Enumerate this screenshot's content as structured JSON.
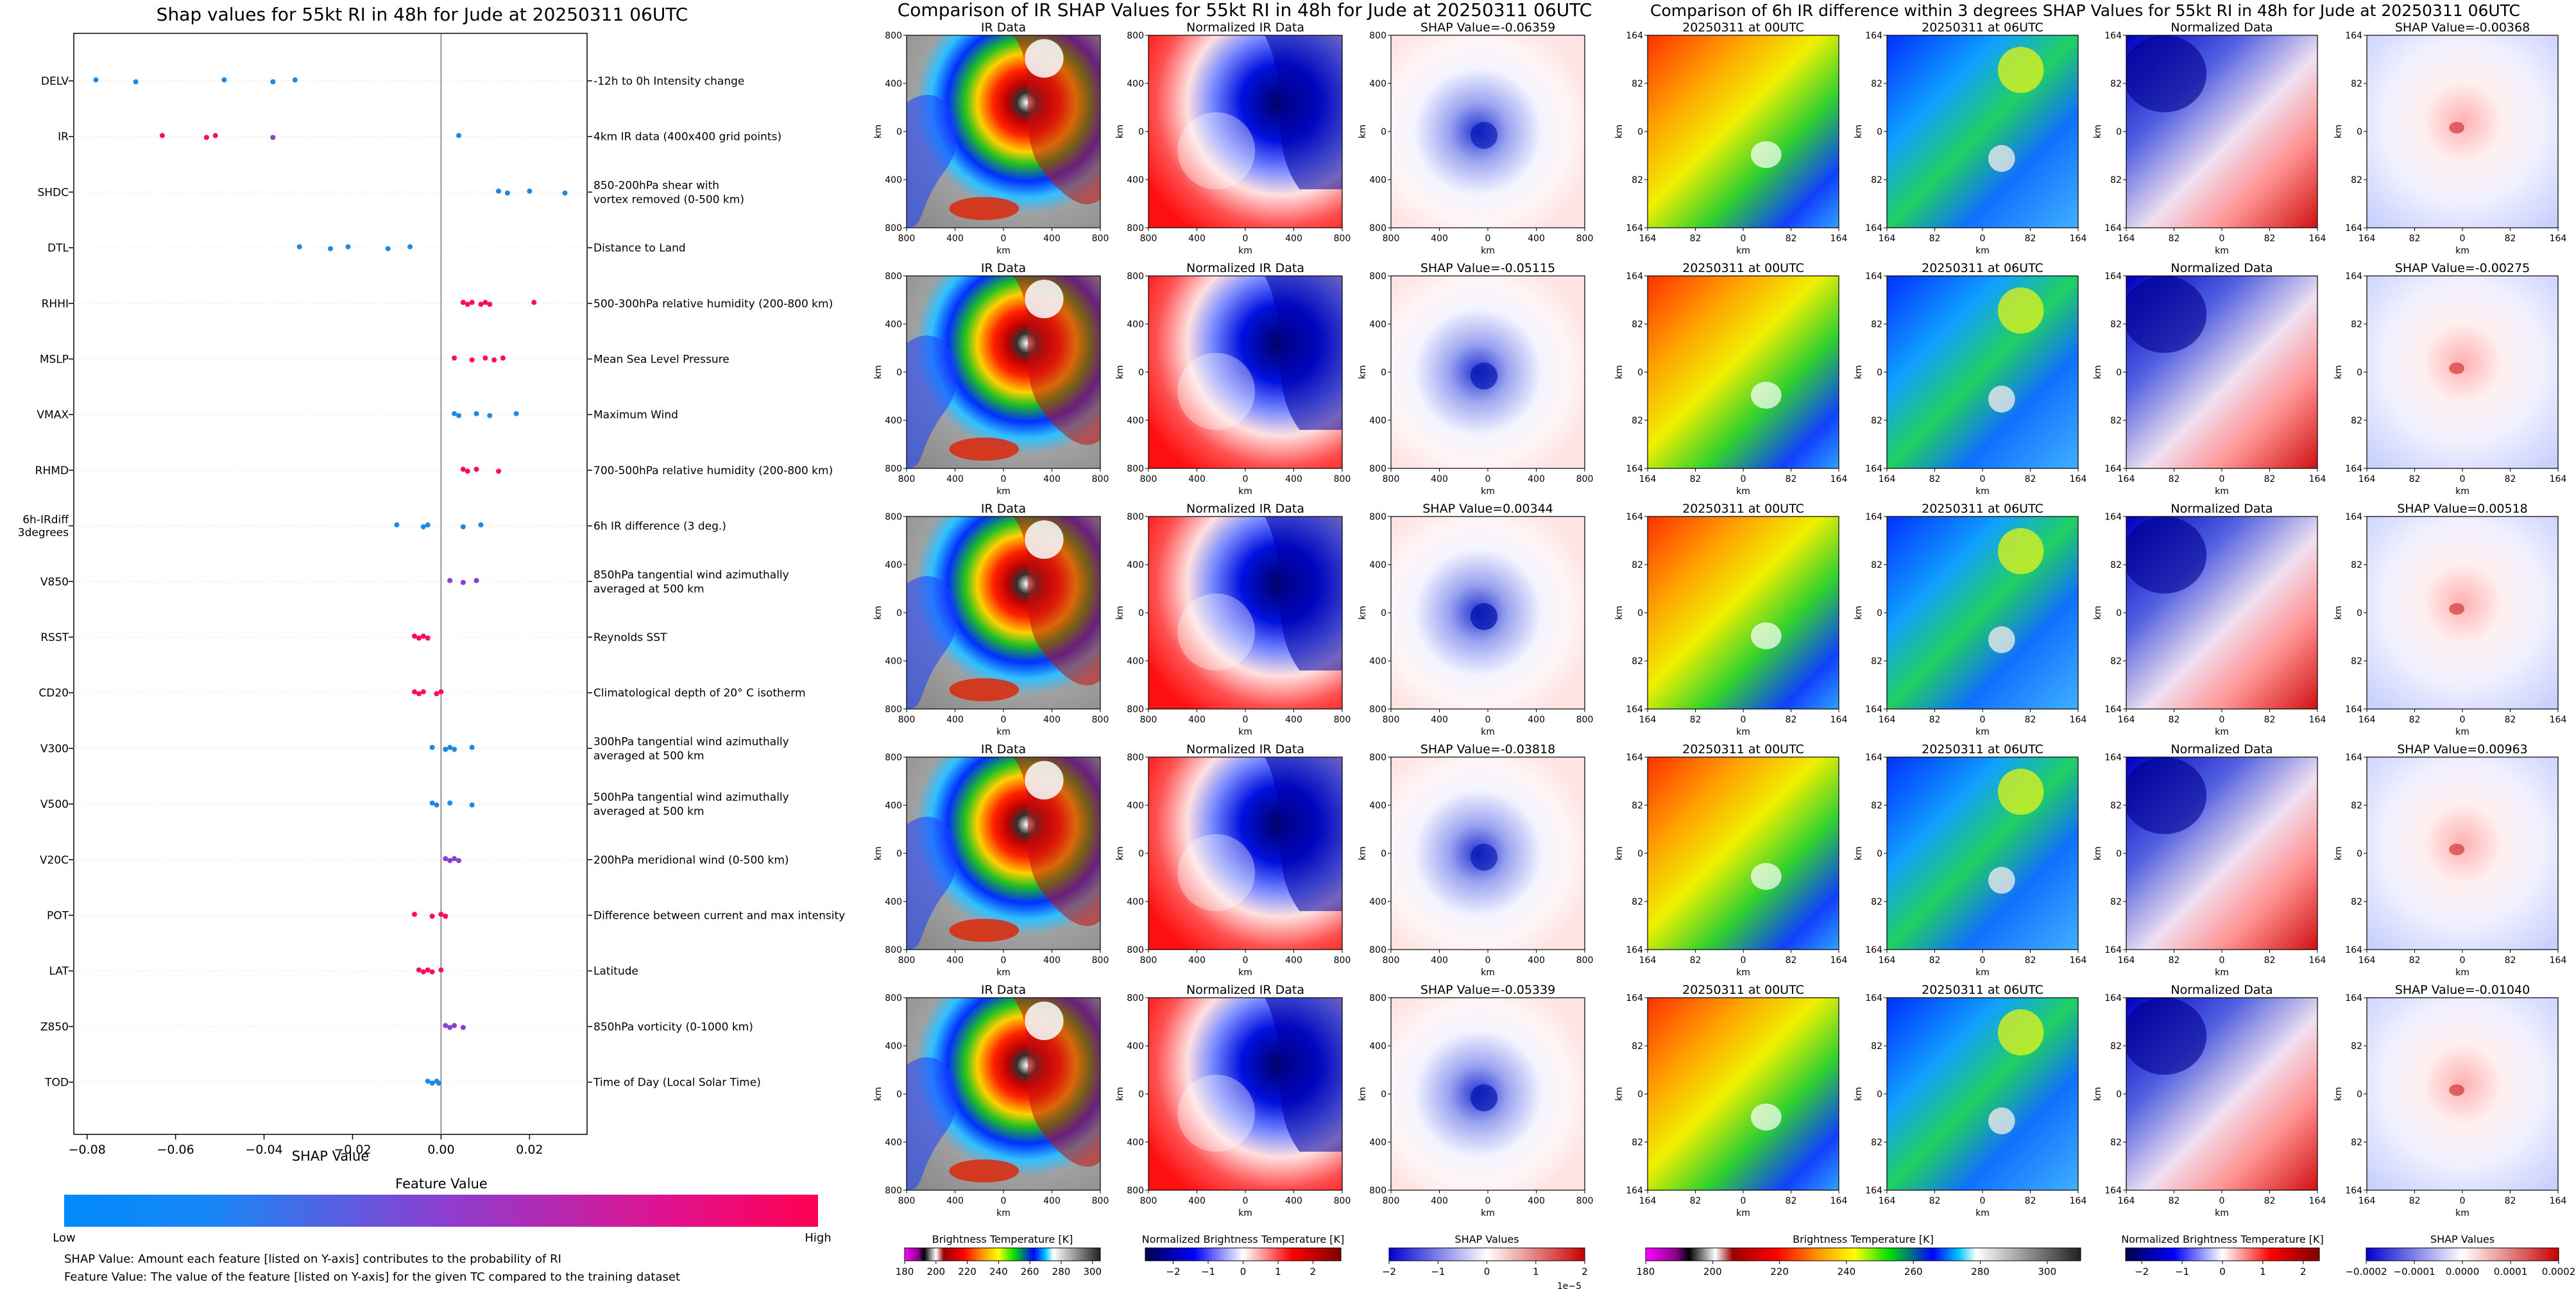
{
  "shap_panel": {
    "title": "Shap values for 55kt RI in 48h for Jude at 20250311 06UTC",
    "xlabel": "SHAP Value",
    "colorbar_title": "Feature Value",
    "colorbar_low": "Low",
    "colorbar_high": "High",
    "note1": "SHAP Value: Amount each feature [listed on Y-axis] contributes to the probability of RI",
    "note2": "Feature Value: The value of the feature [listed on Y-axis] for the given TC compared to the training dataset",
    "colors": {
      "low": "#1e88e5",
      "mid": "#8a3fd1",
      "high": "#ff0d57"
    }
  },
  "ir_panel": {
    "title": "Comparison of IR SHAP Values for 55kt RI in 48h for Jude at 20250311 06UTC",
    "col_titles": [
      "IR Data",
      "Normalized IR Data"
    ],
    "shap_titles": [
      "SHAP Value=-0.06359",
      "SHAP Value=-0.05115",
      "SHAP Value=0.00344",
      "SHAP Value=-0.03818",
      "SHAP Value=-0.05339"
    ],
    "axis_label": "km",
    "ticks": [
      "800",
      "400",
      "0",
      "400",
      "800"
    ],
    "colorbars": [
      {
        "label": "Brightness Temperature [K]",
        "ticks": [
          "180",
          "200",
          "220",
          "240",
          "260",
          "280",
          "300"
        ]
      },
      {
        "label": "Normalized Brightness Temperature [K]",
        "ticks": [
          "−2",
          "−1",
          "0",
          "1",
          "2"
        ]
      },
      {
        "label": "SHAP Values",
        "ticks": [
          "−2",
          "−1",
          "0",
          "1",
          "2"
        ],
        "offset": "1e−5"
      }
    ]
  },
  "diff_panel": {
    "title": "Comparison of 6h IR difference within 3 degrees SHAP Values for 55kt RI in 48h for Jude at 20250311 06UTC",
    "col_titles": [
      "20250311 at 00UTC",
      "20250311 at 06UTC",
      "Normalized Data"
    ],
    "shap_titles": [
      "SHAP Value=-0.00368",
      "SHAP Value=-0.00275",
      "SHAP Value=0.00518",
      "SHAP Value=0.00963",
      "SHAP Value=-0.01040"
    ],
    "axis_label": "km",
    "ticks": [
      "164",
      "82",
      "0",
      "82",
      "164"
    ],
    "colorbars": [
      {
        "label": "Brightness Temperature [K]",
        "ticks": [
          "180",
          "200",
          "220",
          "240",
          "260",
          "280",
          "300"
        ]
      },
      {
        "label": "Normalized Brightness Temperature [K]",
        "ticks": [
          "−2",
          "−1",
          "0",
          "1",
          "2"
        ]
      },
      {
        "label": "SHAP Values",
        "ticks": [
          "−0.0002",
          "−0.0001",
          "0.0000",
          "0.0001",
          "0.0002"
        ]
      }
    ]
  },
  "chart_data": {
    "type": "scatter",
    "title": "Shap values for 55kt RI in 48h for Jude at 20250311 06UTC",
    "xlabel": "SHAP Value",
    "ylabel": "",
    "xlim": [
      -0.083,
      0.033
    ],
    "xticks": [
      {
        "v": -0.08,
        "label": "−0.08"
      },
      {
        "v": -0.06,
        "label": "−0.06"
      },
      {
        "v": -0.04,
        "label": "−0.04"
      },
      {
        "v": -0.02,
        "label": "−0.02"
      },
      {
        "v": 0.0,
        "label": "0.00"
      },
      {
        "v": 0.02,
        "label": "0.02"
      }
    ],
    "features": [
      {
        "code": "DELV",
        "desc": [
          "-12h to 0h Intensity change"
        ],
        "color": "low",
        "points": [
          -0.078,
          -0.069,
          -0.049,
          -0.038,
          -0.033
        ]
      },
      {
        "code": "IR",
        "desc": [
          "4km IR data (400x400 grid points)"
        ],
        "color": "mixed",
        "points": [
          -0.063,
          -0.053,
          -0.051,
          -0.038,
          0.004
        ]
      },
      {
        "code": "SHDC",
        "desc": [
          "850-200hPa shear with",
          "vortex removed (0-500 km)"
        ],
        "color": "low",
        "points": [
          0.013,
          0.015,
          0.02,
          0.028
        ]
      },
      {
        "code": "DTL",
        "desc": [
          "Distance to Land"
        ],
        "color": "low",
        "points": [
          -0.032,
          -0.025,
          -0.021,
          -0.012,
          -0.007
        ]
      },
      {
        "code": "RHHI",
        "desc": [
          "500-300hPa relative humidity (200-800 km)"
        ],
        "color": "high",
        "points": [
          0.005,
          0.006,
          0.007,
          0.009,
          0.01,
          0.011,
          0.021
        ]
      },
      {
        "code": "MSLP",
        "desc": [
          "Mean Sea Level Pressure"
        ],
        "color": "high",
        "points": [
          0.003,
          0.007,
          0.01,
          0.012,
          0.014
        ]
      },
      {
        "code": "VMAX",
        "desc": [
          "Maximum Wind"
        ],
        "color": "low",
        "points": [
          0.003,
          0.004,
          0.008,
          0.011,
          0.017
        ]
      },
      {
        "code": "RHMD",
        "desc": [
          "700-500hPa relative humidity (200-800 km)"
        ],
        "color": "high",
        "points": [
          0.005,
          0.006,
          0.008,
          0.013
        ]
      },
      {
        "code": "6h-IRdiff",
        "code2": "3degrees",
        "desc": [
          "6h IR difference (3 deg.)"
        ],
        "color": "low",
        "points": [
          -0.01,
          -0.004,
          -0.003,
          0.005,
          0.009
        ]
      },
      {
        "code": "V850",
        "desc": [
          "850hPa tangential wind azimuthally",
          "averaged at 500 km"
        ],
        "color": "mid",
        "points": [
          0.002,
          0.005,
          0.008
        ]
      },
      {
        "code": "RSST",
        "desc": [
          "Reynolds SST"
        ],
        "color": "high",
        "points": [
          -0.006,
          -0.005,
          -0.004,
          -0.003
        ]
      },
      {
        "code": "CD20",
        "desc": [
          "Climatological depth of 20° C isotherm"
        ],
        "color": "high",
        "points": [
          -0.006,
          -0.005,
          -0.004,
          -0.001,
          0.0
        ]
      },
      {
        "code": "V300",
        "desc": [
          "300hPa tangential wind azimuthally",
          "averaged at 500 km"
        ],
        "color": "low",
        "points": [
          -0.002,
          0.001,
          0.002,
          0.003,
          0.007
        ]
      },
      {
        "code": "V500",
        "desc": [
          "500hPa tangential wind azimuthally",
          "averaged at 500 km"
        ],
        "color": "low",
        "points": [
          -0.002,
          -0.001,
          0.002,
          0.007
        ]
      },
      {
        "code": "V20C",
        "desc": [
          "200hPa meridional wind (0-500 km)"
        ],
        "color": "mid",
        "points": [
          0.001,
          0.002,
          0.003,
          0.004
        ]
      },
      {
        "code": "POT",
        "desc": [
          "Difference between current and max intensity"
        ],
        "color": "high",
        "points": [
          -0.006,
          -0.002,
          0.0,
          0.001
        ]
      },
      {
        "code": "LAT",
        "desc": [
          "Latitude"
        ],
        "color": "high",
        "points": [
          -0.005,
          -0.004,
          -0.003,
          -0.002,
          0.0
        ]
      },
      {
        "code": "Z850",
        "desc": [
          "850hPa vorticity (0-1000 km)"
        ],
        "color": "mid",
        "points": [
          0.001,
          0.002,
          0.003,
          0.005
        ]
      },
      {
        "code": "TOD",
        "desc": [
          "Time of Day (Local Solar Time)"
        ],
        "color": "low",
        "points": [
          -0.003,
          -0.002,
          -0.001,
          -0.0005
        ]
      }
    ]
  }
}
